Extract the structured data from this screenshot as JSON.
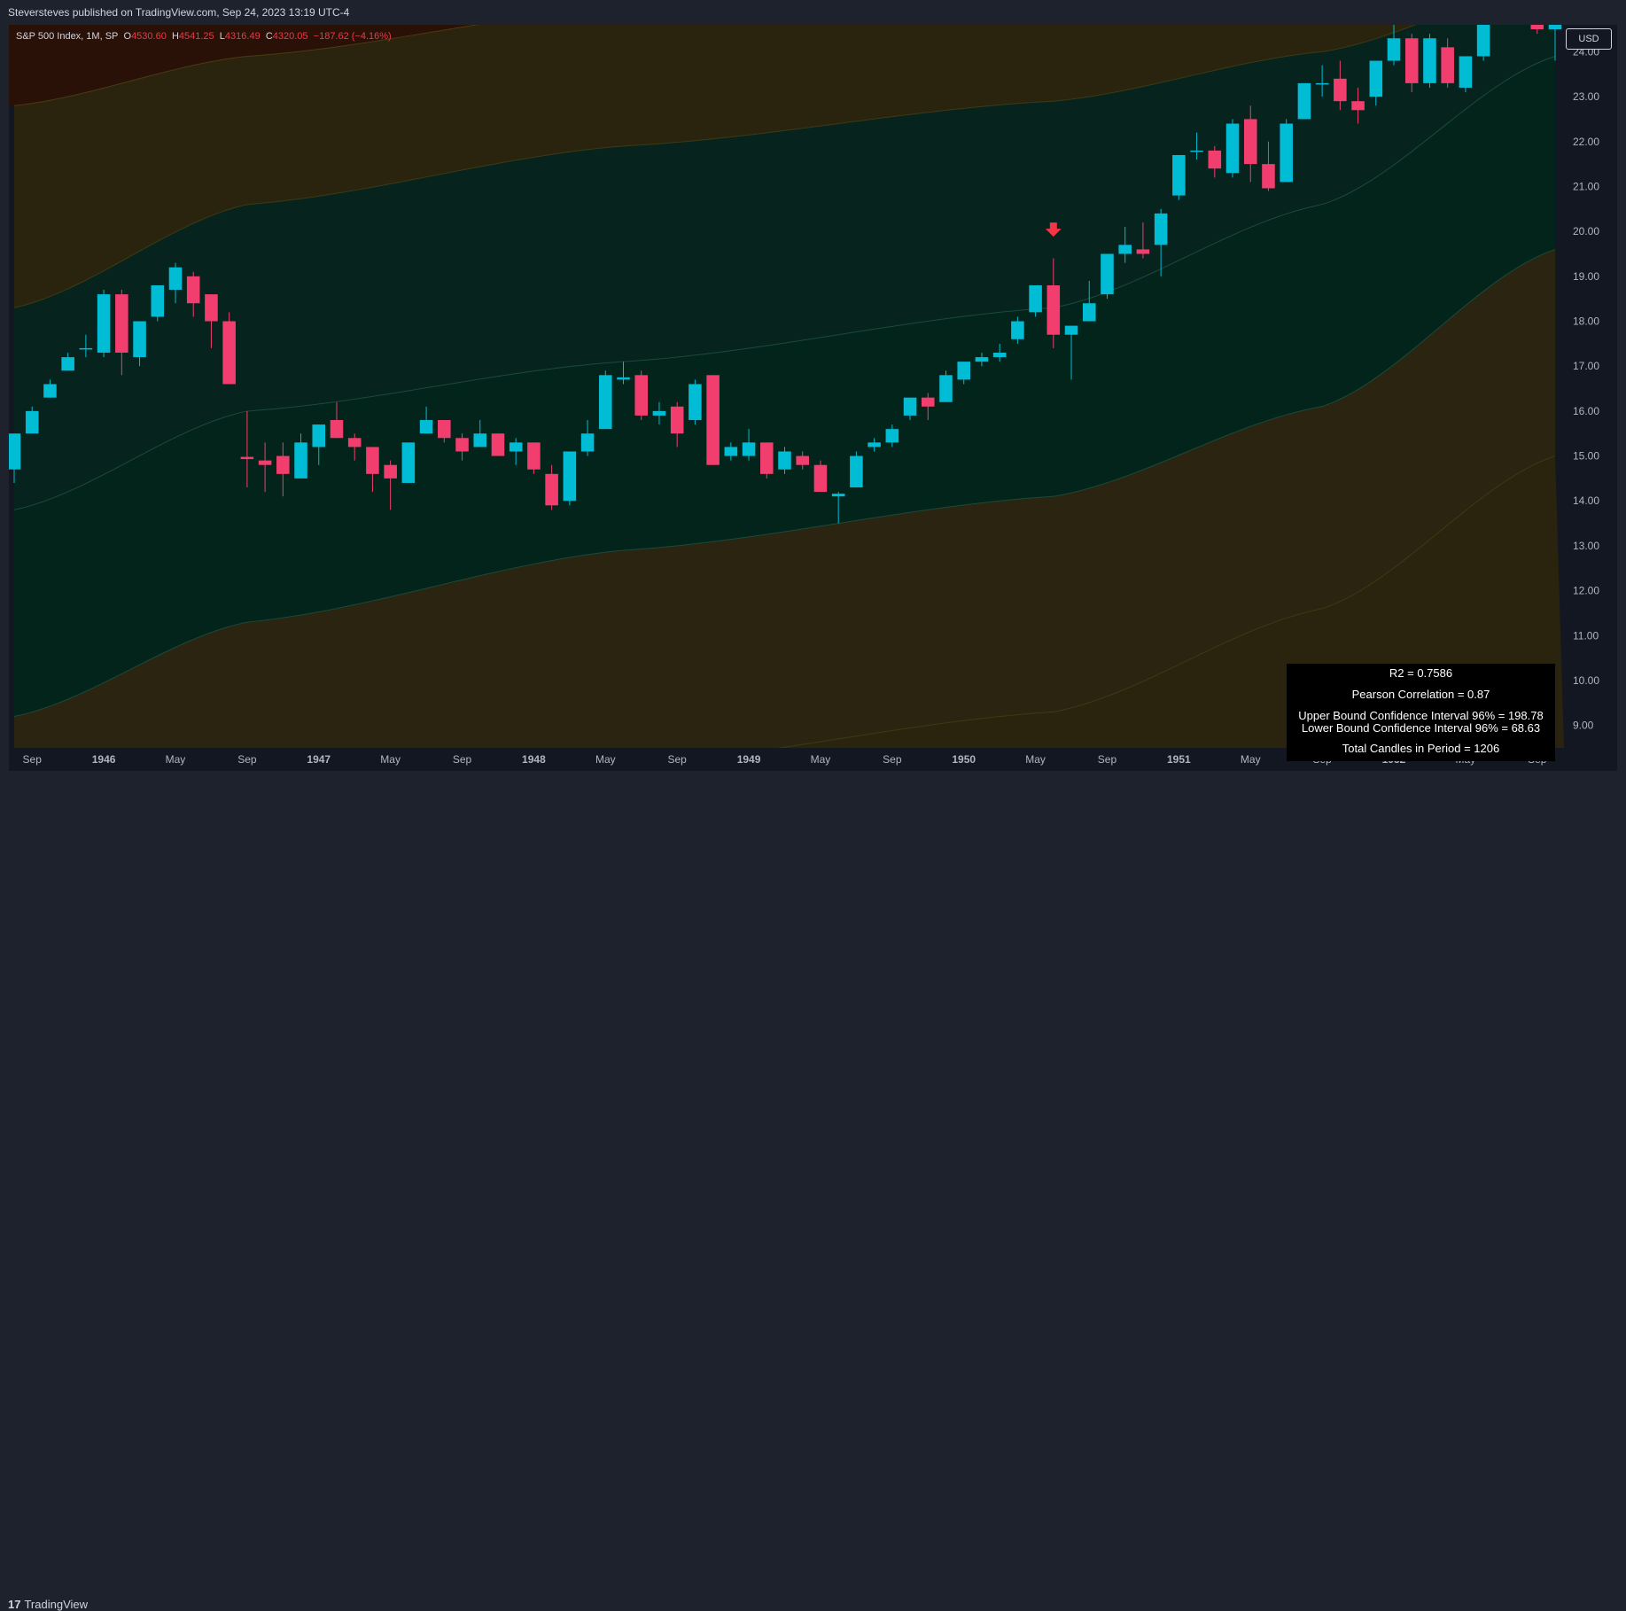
{
  "header": {
    "publisher_text": "Steversteves published on TradingView.com, Sep 24, 2023 13:19 UTC-4"
  },
  "legend": {
    "symbol": "S&P 500 Index, 1M, SP",
    "o_label": "O",
    "o_value": "4530.60",
    "h_label": "H",
    "h_value": "4541.25",
    "l_label": "L",
    "l_value": "4316.49",
    "c_label": "C",
    "c_value": "4320.05",
    "change": "−187.62 (−4.16%)"
  },
  "currency_button": "USD",
  "stats": {
    "r2": "R2 = 0.7586",
    "pearson": "Pearson Correlation = 0.87",
    "upper": "Upper Bound Confidence Interval 96% = 198.78",
    "lower": "Lower Bound Confidence Interval 96% = 68.63",
    "total": "Total Candles in Period = 1206"
  },
  "footer": {
    "logo_mark": "17",
    "logo_text": "TradingView"
  },
  "colors": {
    "up": "#00bcd4",
    "down": "#f23e6e",
    "arrow": "#f23645",
    "background": "#131722"
  },
  "chart_data": {
    "type": "candlestick",
    "y_axis": {
      "scale": "linear",
      "range": [
        8.5,
        24.6
      ],
      "tick_labels": [
        "9.00",
        "10.00",
        "11.00",
        "12.00",
        "13.00",
        "14.00",
        "15.00",
        "16.00",
        "17.00",
        "18.00",
        "19.00",
        "20.00",
        "21.00",
        "22.00",
        "23.00",
        "24.00"
      ],
      "ticks": [
        9,
        10,
        11,
        12,
        13,
        14,
        15,
        16,
        17,
        18,
        19,
        20,
        21,
        22,
        23,
        24
      ],
      "position": "right"
    },
    "x_axis": {
      "range": [
        "1945-08",
        "1952-10"
      ],
      "tick_labels": [
        "Sep",
        "1946",
        "May",
        "Sep",
        "1947",
        "May",
        "Sep",
        "1948",
        "May",
        "Sep",
        "1949",
        "May",
        "Sep",
        "1950",
        "May",
        "Sep",
        "1951",
        "May",
        "Sep",
        "1952",
        "May",
        "Sep"
      ],
      "ticks": [
        "1945-09",
        "1946-01",
        "1946-05",
        "1946-09",
        "1947-01",
        "1947-05",
        "1947-09",
        "1948-01",
        "1948-05",
        "1948-09",
        "1949-01",
        "1949-05",
        "1949-09",
        "1950-01",
        "1950-05",
        "1950-09",
        "1951-01",
        "1951-05",
        "1951-09",
        "1952-01",
        "1952-05",
        "1952-09"
      ]
    },
    "candles": [
      {
        "t": "1945-08",
        "o": 14.7,
        "h": 15.5,
        "l": 14.4,
        "c": 15.5
      },
      {
        "t": "1945-09",
        "o": 15.5,
        "h": 16.1,
        "l": 15.5,
        "c": 16.0
      },
      {
        "t": "1945-10",
        "o": 16.3,
        "h": 16.7,
        "l": 16.3,
        "c": 16.6
      },
      {
        "t": "1945-11",
        "o": 16.9,
        "h": 17.3,
        "l": 16.9,
        "c": 17.2
      },
      {
        "t": "1945-12",
        "o": 17.4,
        "h": 17.7,
        "l": 17.2,
        "c": 17.4
      },
      {
        "t": "1946-01",
        "o": 17.3,
        "h": 18.7,
        "l": 17.2,
        "c": 18.6
      },
      {
        "t": "1946-02",
        "o": 18.6,
        "h": 18.7,
        "l": 16.8,
        "c": 17.3
      },
      {
        "t": "1946-03",
        "o": 17.2,
        "h": 18.0,
        "l": 17.0,
        "c": 18.0
      },
      {
        "t": "1946-04",
        "o": 18.1,
        "h": 18.8,
        "l": 18.0,
        "c": 18.8
      },
      {
        "t": "1946-05",
        "o": 18.7,
        "h": 19.3,
        "l": 18.4,
        "c": 19.2
      },
      {
        "t": "1946-06",
        "o": 19.0,
        "h": 19.1,
        "l": 18.1,
        "c": 18.4
      },
      {
        "t": "1946-07",
        "o": 18.6,
        "h": 18.6,
        "l": 17.4,
        "c": 18.0
      },
      {
        "t": "1946-08",
        "o": 18.0,
        "h": 18.2,
        "l": 16.6,
        "c": 16.6
      },
      {
        "t": "1946-09",
        "o": 14.98,
        "h": 16.0,
        "l": 14.3,
        "c": 14.93
      },
      {
        "t": "1946-10",
        "o": 14.9,
        "h": 15.3,
        "l": 14.2,
        "c": 14.8
      },
      {
        "t": "1946-11",
        "o": 15.0,
        "h": 15.3,
        "l": 14.1,
        "c": 14.6
      },
      {
        "t": "1946-12",
        "o": 14.5,
        "h": 15.5,
        "l": 14.5,
        "c": 15.3
      },
      {
        "t": "1947-01",
        "o": 15.2,
        "h": 15.7,
        "l": 14.8,
        "c": 15.7
      },
      {
        "t": "1947-02",
        "o": 15.8,
        "h": 16.2,
        "l": 15.4,
        "c": 15.4
      },
      {
        "t": "1947-03",
        "o": 15.4,
        "h": 15.5,
        "l": 14.9,
        "c": 15.2
      },
      {
        "t": "1947-04",
        "o": 15.2,
        "h": 15.2,
        "l": 14.2,
        "c": 14.6
      },
      {
        "t": "1947-05",
        "o": 14.8,
        "h": 14.9,
        "l": 13.8,
        "c": 14.5
      },
      {
        "t": "1947-06",
        "o": 14.4,
        "h": 15.3,
        "l": 14.4,
        "c": 15.3
      },
      {
        "t": "1947-07",
        "o": 15.5,
        "h": 16.1,
        "l": 15.5,
        "c": 15.8
      },
      {
        "t": "1947-08",
        "o": 15.8,
        "h": 15.8,
        "l": 15.3,
        "c": 15.4
      },
      {
        "t": "1947-09",
        "o": 15.4,
        "h": 15.5,
        "l": 14.9,
        "c": 15.1
      },
      {
        "t": "1947-10",
        "o": 15.2,
        "h": 15.8,
        "l": 15.2,
        "c": 15.5
      },
      {
        "t": "1947-11",
        "o": 15.5,
        "h": 15.5,
        "l": 15.0,
        "c": 15.0
      },
      {
        "t": "1947-12",
        "o": 15.1,
        "h": 15.4,
        "l": 14.8,
        "c": 15.3
      },
      {
        "t": "1948-01",
        "o": 15.3,
        "h": 15.3,
        "l": 14.6,
        "c": 14.7
      },
      {
        "t": "1948-02",
        "o": 14.6,
        "h": 14.8,
        "l": 13.8,
        "c": 13.9
      },
      {
        "t": "1948-03",
        "o": 14.0,
        "h": 15.1,
        "l": 13.9,
        "c": 15.1
      },
      {
        "t": "1948-04",
        "o": 15.1,
        "h": 15.8,
        "l": 15.0,
        "c": 15.5
      },
      {
        "t": "1948-05",
        "o": 15.6,
        "h": 16.9,
        "l": 15.6,
        "c": 16.8
      },
      {
        "t": "1948-06",
        "o": 16.7,
        "h": 17.1,
        "l": 16.6,
        "c": 16.75
      },
      {
        "t": "1948-07",
        "o": 16.8,
        "h": 16.9,
        "l": 15.8,
        "c": 15.9
      },
      {
        "t": "1948-08",
        "o": 15.9,
        "h": 16.2,
        "l": 15.7,
        "c": 16.0
      },
      {
        "t": "1948-09",
        "o": 16.1,
        "h": 16.2,
        "l": 15.2,
        "c": 15.5
      },
      {
        "t": "1948-10",
        "o": 15.8,
        "h": 16.7,
        "l": 15.7,
        "c": 16.6
      },
      {
        "t": "1948-11",
        "o": 16.8,
        "h": 16.8,
        "l": 14.8,
        "c": 14.8
      },
      {
        "t": "1948-12",
        "o": 15.0,
        "h": 15.3,
        "l": 14.9,
        "c": 15.2
      },
      {
        "t": "1949-01",
        "o": 15.0,
        "h": 15.6,
        "l": 14.9,
        "c": 15.3
      },
      {
        "t": "1949-02",
        "o": 15.3,
        "h": 15.3,
        "l": 14.5,
        "c": 14.6
      },
      {
        "t": "1949-03",
        "o": 14.7,
        "h": 15.2,
        "l": 14.6,
        "c": 15.1
      },
      {
        "t": "1949-04",
        "o": 15.0,
        "h": 15.1,
        "l": 14.7,
        "c": 14.8
      },
      {
        "t": "1949-05",
        "o": 14.8,
        "h": 14.9,
        "l": 14.2,
        "c": 14.2
      },
      {
        "t": "1949-06",
        "o": 14.1,
        "h": 14.2,
        "l": 13.5,
        "c": 14.16
      },
      {
        "t": "1949-07",
        "o": 14.3,
        "h": 15.1,
        "l": 14.3,
        "c": 15.0
      },
      {
        "t": "1949-08",
        "o": 15.2,
        "h": 15.4,
        "l": 15.1,
        "c": 15.3
      },
      {
        "t": "1949-09",
        "o": 15.3,
        "h": 15.7,
        "l": 15.2,
        "c": 15.6
      },
      {
        "t": "1949-10",
        "o": 15.9,
        "h": 16.2,
        "l": 15.8,
        "c": 16.3
      },
      {
        "t": "1949-11",
        "o": 16.3,
        "h": 16.4,
        "l": 15.8,
        "c": 16.1
      },
      {
        "t": "1949-12",
        "o": 16.2,
        "h": 16.9,
        "l": 16.2,
        "c": 16.8
      },
      {
        "t": "1950-01",
        "o": 16.7,
        "h": 17.1,
        "l": 16.6,
        "c": 17.1
      },
      {
        "t": "1950-02",
        "o": 17.1,
        "h": 17.3,
        "l": 17.0,
        "c": 17.2
      },
      {
        "t": "1950-03",
        "o": 17.2,
        "h": 17.5,
        "l": 17.1,
        "c": 17.3
      },
      {
        "t": "1950-04",
        "o": 17.6,
        "h": 18.1,
        "l": 17.5,
        "c": 18.0
      },
      {
        "t": "1950-05",
        "o": 18.2,
        "h": 18.8,
        "l": 18.1,
        "c": 18.8
      },
      {
        "t": "1950-06",
        "o": 18.8,
        "h": 19.4,
        "l": 17.4,
        "c": 17.7
      },
      {
        "t": "1950-07",
        "o": 17.7,
        "h": 17.9,
        "l": 16.7,
        "c": 17.9
      },
      {
        "t": "1950-08",
        "o": 18.0,
        "h": 18.9,
        "l": 18.0,
        "c": 18.4
      },
      {
        "t": "1950-09",
        "o": 18.6,
        "h": 19.5,
        "l": 18.5,
        "c": 19.5
      },
      {
        "t": "1950-10",
        "o": 19.5,
        "h": 20.1,
        "l": 19.3,
        "c": 19.7
      },
      {
        "t": "1950-11",
        "o": 19.6,
        "h": 20.2,
        "l": 19.4,
        "c": 19.5
      },
      {
        "t": "1950-12",
        "o": 19.7,
        "h": 20.5,
        "l": 19.0,
        "c": 20.4
      },
      {
        "t": "1951-01",
        "o": 20.8,
        "h": 21.7,
        "l": 20.7,
        "c": 21.7
      },
      {
        "t": "1951-02",
        "o": 21.8,
        "h": 22.2,
        "l": 21.6,
        "c": 21.8
      },
      {
        "t": "1951-03",
        "o": 21.8,
        "h": 21.9,
        "l": 21.2,
        "c": 21.4
      },
      {
        "t": "1951-04",
        "o": 21.3,
        "h": 22.5,
        "l": 21.2,
        "c": 22.4
      },
      {
        "t": "1951-05",
        "o": 22.5,
        "h": 22.8,
        "l": 21.1,
        "c": 21.5
      },
      {
        "t": "1951-06",
        "o": 21.5,
        "h": 22.0,
        "l": 20.9,
        "c": 20.96
      },
      {
        "t": "1951-07",
        "o": 21.1,
        "h": 22.5,
        "l": 21.1,
        "c": 22.4
      },
      {
        "t": "1951-08",
        "o": 22.5,
        "h": 23.3,
        "l": 22.5,
        "c": 23.3
      },
      {
        "t": "1951-09",
        "o": 23.3,
        "h": 23.7,
        "l": 23.0,
        "c": 23.3
      },
      {
        "t": "1951-10",
        "o": 23.4,
        "h": 23.8,
        "l": 22.7,
        "c": 22.9
      },
      {
        "t": "1951-11",
        "o": 22.9,
        "h": 23.2,
        "l": 22.4,
        "c": 22.7
      },
      {
        "t": "1951-12",
        "o": 23.0,
        "h": 23.8,
        "l": 22.8,
        "c": 23.8
      },
      {
        "t": "1952-01",
        "o": 23.8,
        "h": 24.7,
        "l": 23.7,
        "c": 24.3
      },
      {
        "t": "1952-02",
        "o": 24.3,
        "h": 24.4,
        "l": 23.1,
        "c": 23.3
      },
      {
        "t": "1952-03",
        "o": 23.3,
        "h": 24.4,
        "l": 23.2,
        "c": 24.3
      },
      {
        "t": "1952-04",
        "o": 24.1,
        "h": 24.3,
        "l": 23.2,
        "c": 23.3
      },
      {
        "t": "1952-05",
        "o": 23.2,
        "h": 23.9,
        "l": 23.1,
        "c": 23.9
      },
      {
        "t": "1952-06",
        "o": 23.9,
        "h": 25.0,
        "l": 23.8,
        "c": 25.0
      },
      {
        "t": "1952-07",
        "o": 25.1,
        "h": 25.5,
        "l": 24.9,
        "c": 25.3
      },
      {
        "t": "1952-08",
        "o": 25.1,
        "h": 25.2,
        "l": 24.6,
        "c": 24.9
      },
      {
        "t": "1952-09",
        "o": 24.9,
        "h": 25.0,
        "l": 24.4,
        "c": 24.5
      },
      {
        "t": "1952-10",
        "o": 24.5,
        "h": 24.6,
        "l": 23.8,
        "c": 24.6
      }
    ],
    "bands": [
      {
        "name": "upper-outer",
        "t": [
          "1945-08",
          "1946-09",
          "1948-06",
          "1950-06",
          "1951-09",
          "1952-10"
        ],
        "v": [
          22.8,
          23.9,
          25.0,
          26.5,
          28.5,
          30.5
        ]
      },
      {
        "name": "upper-2",
        "t": [
          "1945-08",
          "1946-09",
          "1948-06",
          "1950-06",
          "1951-09",
          "1952-10"
        ],
        "v": [
          18.3,
          20.6,
          21.9,
          22.9,
          24.0,
          25.6
        ]
      },
      {
        "name": "upper-inner",
        "t": [
          "1945-08",
          "1946-09",
          "1948-06",
          "1950-06",
          "1951-09",
          "1952-10"
        ],
        "v": [
          13.8,
          16.0,
          17.1,
          18.3,
          20.6,
          23.9
        ]
      },
      {
        "name": "lower-inner",
        "t": [
          "1945-08",
          "1946-09",
          "1948-06",
          "1950-06",
          "1951-09",
          "1952-10"
        ],
        "v": [
          9.2,
          11.3,
          12.9,
          14.1,
          16.1,
          19.6
        ]
      },
      {
        "name": "lower-2",
        "t": [
          "1945-08",
          "1946-09",
          "1948-06",
          "1950-06",
          "1951-09",
          "1952-10"
        ],
        "v": [
          4.7,
          6.5,
          8.1,
          9.3,
          11.6,
          15.0
        ]
      }
    ],
    "annotations": [
      {
        "type": "arrow-down",
        "t": "1950-06",
        "y": 20.0
      }
    ]
  }
}
